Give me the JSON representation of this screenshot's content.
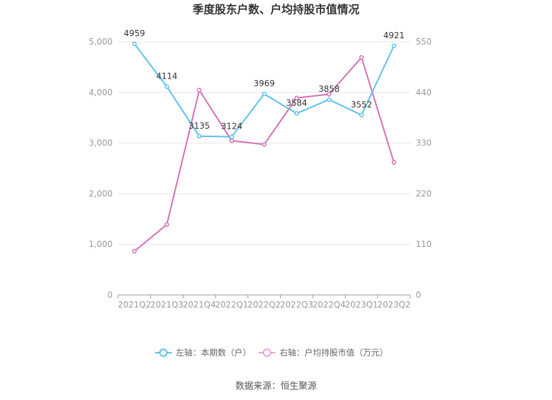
{
  "chart_data": {
    "type": "line",
    "title": "季度股东户数、户均持股市值情况",
    "categories": [
      "2021Q2",
      "2021Q3",
      "2021Q4",
      "2022Q1",
      "2022Q2",
      "2022Q3",
      "2022Q4",
      "2023Q1",
      "2023Q2"
    ],
    "series": [
      {
        "name": "左轴：本期数（户）",
        "axis": "left",
        "color": "#5bc0eb",
        "values": [
          4959,
          4114,
          3135,
          3124,
          3969,
          3584,
          3858,
          3552,
          4921
        ],
        "labels": [
          "4959",
          "4114",
          "3135",
          "3124",
          "3969",
          "3584",
          "3858",
          "3552",
          "4921"
        ]
      },
      {
        "name": "右轴：户均持股市值（万元）",
        "axis": "right",
        "color": "#d36eb4",
        "values": [
          95,
          153,
          445,
          335,
          327,
          428,
          436,
          516,
          288
        ]
      }
    ],
    "left_axis": {
      "min": 0,
      "max": 5000,
      "ticks": [
        "0",
        "1,000",
        "2,000",
        "3,000",
        "4,000",
        "5,000"
      ]
    },
    "right_axis": {
      "min": 0,
      "max": 550,
      "ticks": [
        "0",
        "110",
        "220",
        "330",
        "440",
        "550"
      ]
    },
    "grid": true,
    "legend_position": "bottom"
  },
  "source": "数据来源：恒生聚源"
}
